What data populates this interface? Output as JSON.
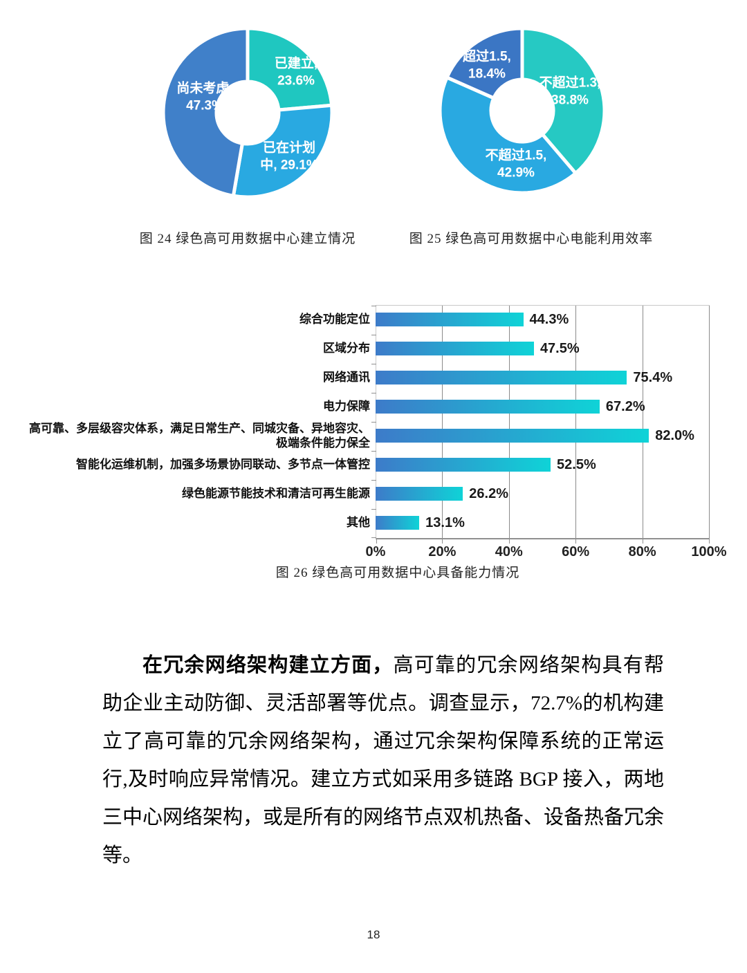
{
  "figures": {
    "fig24": {
      "caption": "图 24 绿色高可用数据中心建立情况",
      "slices": [
        {
          "name": "已建立",
          "pct": 23.6,
          "display": [
            "已建立,",
            "23.6%"
          ],
          "color": "#1FC7C0"
        },
        {
          "name": "已在计划中",
          "pct": 29.1,
          "display": [
            "已在计划",
            "中, 29.1%"
          ],
          "color": "#29A9E1"
        },
        {
          "name": "尚未考虑",
          "pct": 47.3,
          "display": [
            "尚未考虑,",
            "47.3%"
          ],
          "color": "#4080C9"
        }
      ]
    },
    "fig25": {
      "caption": "图 25 绿色高可用数据中心电能利用效率",
      "slices": [
        {
          "name": "不超过1.3",
          "pct": 38.8,
          "display": [
            "不超过1.3,",
            "38.8%"
          ],
          "color": "#26C9C3"
        },
        {
          "name": "不超过1.5",
          "pct": 42.9,
          "display": [
            "不超过1.5,",
            "42.9%"
          ],
          "color": "#29A9E1"
        },
        {
          "name": "超过1.5",
          "pct": 18.4,
          "display": [
            "超过1.5,",
            "18.4%"
          ],
          "color": "#3B76C4"
        }
      ]
    },
    "fig26": {
      "caption": "图 26 绿色高可用数据中心具备能力情况",
      "categories": [
        "综合功能定位",
        "区域分布",
        "网络通讯",
        "电力保障",
        "高可靠、多层级容灾体系，满足日常生产、同城灾备、异地容灾、极端条件能力保全",
        "智能化运维机制，加强多场景协同联动、多节点一体管控",
        "绿色能源节能技术和清洁可再生能源",
        "其他"
      ],
      "values": [
        44.3,
        47.5,
        75.4,
        67.2,
        82.0,
        52.5,
        26.2,
        13.1
      ],
      "value_labels": [
        "44.3%",
        "47.5%",
        "75.4%",
        "67.2%",
        "82.0%",
        "52.5%",
        "26.2%",
        "13.1%"
      ],
      "x_ticks": [
        "0%",
        "20%",
        "40%",
        "60%",
        "80%",
        "100%"
      ],
      "bar_gradient": [
        "#3D7BC9",
        "#0FD3D7"
      ]
    }
  },
  "chart_data": [
    {
      "type": "pie",
      "style": "donut",
      "title": "图 24 绿色高可用数据中心建立情况",
      "labels": [
        "已建立",
        "已在计划中",
        "尚未考虑"
      ],
      "values": [
        23.6,
        29.1,
        47.3
      ],
      "unit": "%",
      "colors": [
        "#1FC7C0",
        "#29A9E1",
        "#4080C9"
      ],
      "legend_position": "inside-slices"
    },
    {
      "type": "pie",
      "style": "donut",
      "title": "图 25 绿色高可用数据中心电能利用效率",
      "labels": [
        "不超过1.3",
        "不超过1.5",
        "超过1.5"
      ],
      "values": [
        38.8,
        42.9,
        18.4
      ],
      "unit": "%",
      "colors": [
        "#26C9C3",
        "#29A9E1",
        "#3B76C4"
      ],
      "legend_position": "inside-slices"
    },
    {
      "type": "bar",
      "orientation": "horizontal",
      "title": "图 26 绿色高可用数据中心具备能力情况",
      "categories": [
        "综合功能定位",
        "区域分布",
        "网络通讯",
        "电力保障",
        "高可靠、多层级容灾体系，满足日常生产、同城灾备、异地容灾、极端条件能力保全",
        "智能化运维机制，加强多场景协同联动、多节点一体管控",
        "绿色能源节能技术和清洁可再生能源",
        "其他"
      ],
      "values": [
        44.3,
        47.5,
        75.4,
        67.2,
        82.0,
        52.5,
        26.2,
        13.1
      ],
      "xlabel": "",
      "ylabel": "",
      "xlim": [
        0,
        100
      ],
      "x_tick_labels": [
        "0%",
        "20%",
        "40%",
        "60%",
        "80%",
        "100%"
      ],
      "grid": true,
      "data_labels": true
    }
  ],
  "paragraph": {
    "bold_lead": "在冗余网络架构建立方面，",
    "body": "高可靠的冗余网络架构具有帮助企业主动防御、灵活部署等优点。调查显示，72.7%的机构建立了高可靠的冗余网络架构，通过冗余架构保障系统的正常运行,及时响应异常情况。建立方式如采用多链路 BGP 接入，两地三中心网络架构，或是所有的网络节点双机热备、设备热备冗余等。"
  },
  "page_number": "18"
}
